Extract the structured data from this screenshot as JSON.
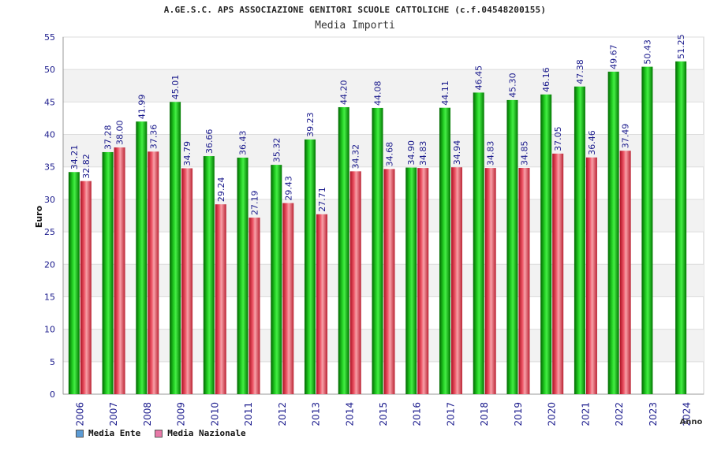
{
  "chart_data": {
    "type": "bar",
    "title": "A.GE.S.C. APS ASSOCIAZIONE GENITORI SCUOLE CATTOLICHE (c.f.04548200155)",
    "subtitle": "Media Importi",
    "xlabel": "Anno",
    "ylabel": "Euro",
    "ylim": [
      0,
      55
    ],
    "yticks": [
      0,
      5,
      10,
      15,
      20,
      25,
      30,
      35,
      40,
      45,
      50,
      55
    ],
    "grid": true,
    "legend_position": "bottom-left",
    "categories": [
      "2006",
      "2007",
      "2008",
      "2009",
      "2010",
      "2011",
      "2012",
      "2013",
      "2014",
      "2015",
      "2016",
      "2017",
      "2018",
      "2019",
      "2020",
      "2021",
      "2022",
      "2023",
      "2024"
    ],
    "series": [
      {
        "name": "Media Ente",
        "legend_color": "#5b9bd5",
        "bar_color": "#22bb22",
        "labels": [
          "34.21",
          "37.28",
          "41.99",
          "45.01",
          "36.66",
          "36.43",
          "35.32",
          "39.23",
          "44.20",
          "44.08",
          "34.90",
          "44.11",
          "46.45",
          "45.30",
          "46.16",
          "47.38",
          "49.67",
          "50.43",
          "51.25"
        ],
        "values": [
          34.21,
          37.28,
          41.99,
          45.01,
          36.66,
          36.43,
          35.32,
          39.23,
          44.2,
          44.08,
          34.9,
          44.11,
          46.45,
          45.3,
          46.16,
          47.38,
          49.67,
          50.43,
          51.25
        ]
      },
      {
        "name": "Media Nazionale",
        "legend_color": "#e879a8",
        "bar_color": "#ee4455",
        "labels": [
          "32.82",
          "38.00",
          "37.36",
          "34.79",
          "29.24",
          "27.19",
          "29.43",
          "27.71",
          "34.32",
          "34.68",
          "34.83",
          "34.94",
          "34.83",
          "34.85",
          "37.05",
          "36.46",
          "37.49",
          null,
          null
        ],
        "values": [
          32.82,
          38.0,
          37.36,
          34.79,
          29.24,
          27.19,
          29.43,
          27.71,
          34.32,
          34.68,
          34.83,
          34.94,
          34.83,
          34.85,
          37.05,
          36.46,
          37.49,
          null,
          null
        ]
      }
    ]
  }
}
